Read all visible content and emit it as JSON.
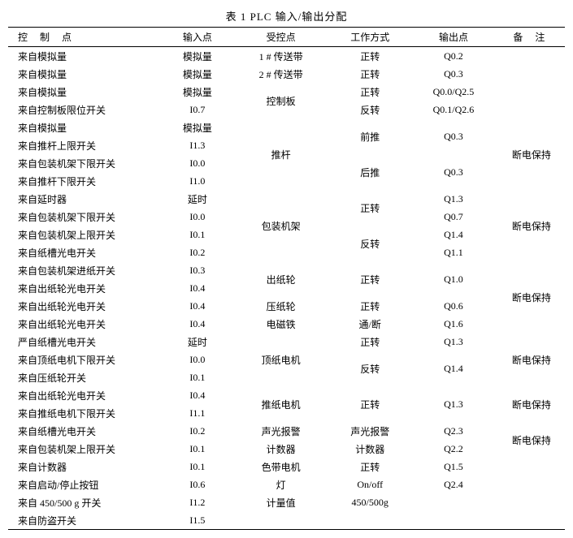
{
  "caption": "表 1   PLC 输入/输出分配",
  "headers": {
    "control": "控 制 点",
    "input": "输入点",
    "controlled": "受控点",
    "mode": "工作方式",
    "output": "输出点",
    "remark": "备   注"
  },
  "rows": [
    {
      "ctrl": "来自模拟量",
      "in": "模拟量",
      "ctrled": "1 # 传送带",
      "mode": "正转",
      "out": "Q0.2",
      "rm": "",
      "ctrled_rs": 1,
      "mode_rs": 1,
      "out_rs": 1,
      "rm_rs": 1
    },
    {
      "ctrl": "来自模拟量",
      "in": "模拟量",
      "ctrled": "2 # 传送带",
      "mode": "正转",
      "out": "Q0.3",
      "rm": "",
      "ctrled_rs": 1,
      "mode_rs": 1,
      "out_rs": 1,
      "rm_rs": 1
    },
    {
      "ctrl": "来自模拟量",
      "in": "模拟量",
      "ctrled": "控制板",
      "mode": "正转",
      "out": "Q0.0/Q2.5",
      "rm": "",
      "ctrled_rs": 2,
      "mode_rs": 1,
      "out_rs": 1,
      "rm_rs": 2
    },
    {
      "ctrl": "来自控制板限位开关",
      "in": "I0.7",
      "ctrled": null,
      "mode": "反转",
      "out": "Q0.1/Q2.6",
      "rm": null,
      "mode_rs": 1,
      "out_rs": 1
    },
    {
      "ctrl": "来自模拟量",
      "in": "模拟量",
      "ctrled": "推杆",
      "mode": "前推",
      "out": "Q0.3",
      "rm": "断电保持",
      "ctrled_rs": 4,
      "mode_rs": 2,
      "out_rs": 2,
      "rm_rs": 4
    },
    {
      "ctrl": "来自推杆上限开关",
      "in": "I1.3",
      "ctrled": null,
      "mode": null,
      "out": null,
      "rm": null
    },
    {
      "ctrl": "来自包装机架下限开关",
      "in": "I0.0",
      "ctrled": null,
      "mode": "后推",
      "out": "Q0.3",
      "rm": null,
      "mode_rs": 2,
      "out_rs": 2
    },
    {
      "ctrl": "来自推杆下限开关",
      "in": "I1.0",
      "ctrled": null,
      "mode": null,
      "out": null,
      "rm": null
    },
    {
      "ctrl": "来自延时器",
      "in": "延时",
      "ctrled": "包装机架",
      "mode": "正转",
      "out": "Q1.3",
      "rm": "断电保持",
      "ctrled_rs": 4,
      "mode_rs": 2,
      "out_rs": 1,
      "rm_rs": 4
    },
    {
      "ctrl": "来自包装机架下限开关",
      "in": "I0.0",
      "ctrled": null,
      "mode": null,
      "out": "Q0.7",
      "rm": null,
      "out_rs": 1
    },
    {
      "ctrl": "来自包装机架上限开关",
      "in": "I0.1",
      "ctrled": null,
      "mode": "反转",
      "out": "Q1.4",
      "rm": null,
      "mode_rs": 2,
      "out_rs": 1
    },
    {
      "ctrl": "来自纸槽光电开关",
      "in": "I0.2",
      "ctrled": null,
      "mode": null,
      "out": "Q1.1",
      "rm": null,
      "out_rs": 1
    },
    {
      "ctrl": "来自包装机架进纸开关",
      "in": "I0.3",
      "ctrled": "出纸轮",
      "mode": "正转",
      "out": "Q1.0",
      "rm": "断电保持",
      "ctrled_rs": 2,
      "mode_rs": 2,
      "out_rs": 2,
      "rm_rs": 4
    },
    {
      "ctrl": "来自出纸轮光电开关",
      "in": "I0.4",
      "ctrled": null,
      "mode": null,
      "out": null,
      "rm": null
    },
    {
      "ctrl": "来自出纸轮光电开关",
      "in": "I0.4",
      "ctrled": "压纸轮",
      "mode": "正转",
      "out": "Q0.6",
      "rm": null,
      "ctrled_rs": 1,
      "mode_rs": 1,
      "out_rs": 1
    },
    {
      "ctrl": "来自出纸轮光电开关",
      "in": "I0.4",
      "ctrled": "电磁铁",
      "mode": "通/断",
      "out": "Q1.6",
      "rm": null,
      "ctrled_rs": 1,
      "mode_rs": 1,
      "out_rs": 1
    },
    {
      "ctrl": "严自纸槽光电开关",
      "in": "延时",
      "ctrled": "顶纸电机",
      "mode": "正转",
      "out": "Q1.3",
      "rm": "断电保持",
      "ctrled_rs": 3,
      "mode_rs": 1,
      "out_rs": 1,
      "rm_rs": 3
    },
    {
      "ctrl": "来自顶纸电机下限开关",
      "in": "I0.0",
      "ctrled": null,
      "mode": "反转",
      "out": "Q1.4",
      "rm": null,
      "mode_rs": 2,
      "out_rs": 2
    },
    {
      "ctrl": "来自压纸轮开关",
      "in": "I0.1",
      "ctrled": null,
      "mode": null,
      "out": null,
      "rm": null
    },
    {
      "ctrl": "来自出纸轮光电开关",
      "in": "I0.4",
      "ctrled": "推纸电机",
      "mode": "正转",
      "out": "Q1.3",
      "rm": "断电保持",
      "ctrled_rs": 2,
      "mode_rs": 2,
      "out_rs": 2,
      "rm_rs": 2
    },
    {
      "ctrl": "来自推纸电机下限开关",
      "in": "I1.1",
      "ctrled": null,
      "mode": null,
      "out": null,
      "rm": null
    },
    {
      "ctrl": "来自纸槽光电开关",
      "in": "I0.2",
      "ctrled": "声光报警",
      "mode": "声光报警",
      "out": "Q2.3",
      "rm": "断电保持",
      "ctrled_rs": 1,
      "mode_rs": 1,
      "out_rs": 1,
      "rm_rs": 2
    },
    {
      "ctrl": "来自包装机架上限开关",
      "in": "I0.1",
      "ctrled": "计数器",
      "mode": "计数器",
      "out": "Q2.2",
      "rm": null,
      "ctrled_rs": 1,
      "mode_rs": 1,
      "out_rs": 1
    },
    {
      "ctrl": "来自计数器",
      "in": "I0.1",
      "ctrled": "色带电机",
      "mode": "正转",
      "out": "Q1.5",
      "rm": "",
      "ctrled_rs": 1,
      "mode_rs": 1,
      "out_rs": 1,
      "rm_rs": 1
    },
    {
      "ctrl": "来自启动/停止按钮",
      "in": "I0.6",
      "ctrled": "灯",
      "mode": "On/off",
      "out": "Q2.4",
      "rm": "",
      "ctrled_rs": 1,
      "mode_rs": 1,
      "out_rs": 1,
      "rm_rs": 1
    },
    {
      "ctrl": "来自 450/500 g 开关",
      "in": "I1.2",
      "ctrled": "计量值",
      "mode": "450/500g",
      "out": "",
      "rm": "",
      "ctrled_rs": 1,
      "mode_rs": 1,
      "out_rs": 1,
      "rm_rs": 1
    },
    {
      "ctrl": "来自防盗开关",
      "in": "I1.5",
      "ctrled": "",
      "mode": "",
      "out": "",
      "rm": "",
      "ctrled_rs": 1,
      "mode_rs": 1,
      "out_rs": 1,
      "rm_rs": 1
    }
  ]
}
